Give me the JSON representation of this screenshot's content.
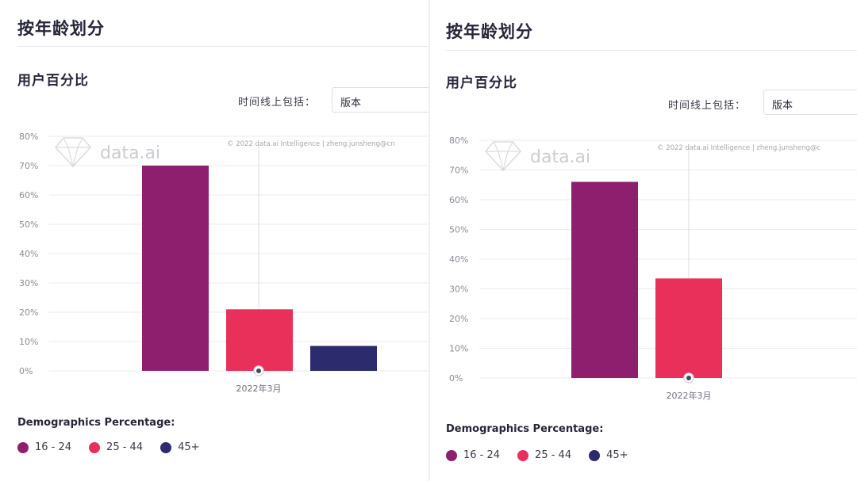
{
  "colors": {
    "age_16_24": "#8e1f6e",
    "age_25_44": "#e8305a",
    "age_45_plus": "#2b2b6e",
    "grid": "#e9ebef",
    "axis_text": "#8a8d96"
  },
  "panels": [
    {
      "title": "按年龄划分",
      "subtitle": "用户百分比",
      "filter_label": "时间线上包括：",
      "filter_value": "版本",
      "watermark": "data.ai",
      "copyright": "© 2022 data.ai Intelligence | zheng.junsheng@cn",
      "legend_title": "Demographics Percentage:",
      "legend": [
        "16 - 24",
        "25 - 44",
        "45+"
      ]
    },
    {
      "title": "按年龄划分",
      "subtitle": "用户百分比",
      "filter_label": "时间线上包括：",
      "filter_value": "版本",
      "watermark": "data.ai",
      "copyright": "© 2022 data.ai Intelligence | zheng.junsheng@c",
      "legend_title": "Demographics Percentage:",
      "legend": [
        "16 - 24",
        "25 - 44",
        "45+"
      ]
    }
  ],
  "chart_data": [
    {
      "type": "bar",
      "categories": [
        "2022年3月"
      ],
      "series": [
        {
          "name": "16 - 24",
          "values": [
            70
          ],
          "color": "#8e1f6e"
        },
        {
          "name": "25 - 44",
          "values": [
            21
          ],
          "color": "#e8305a"
        },
        {
          "name": "45+",
          "values": [
            8.5
          ],
          "color": "#2b2b6e"
        }
      ],
      "yticks": [
        "0%",
        "10%",
        "20%",
        "30%",
        "40%",
        "50%",
        "60%",
        "70%",
        "80%"
      ],
      "ylim": [
        0,
        80
      ],
      "grid": true,
      "legend_position": "bottom-left"
    },
    {
      "type": "bar",
      "categories": [
        "2022年3月"
      ],
      "series": [
        {
          "name": "16 - 24",
          "values": [
            66
          ],
          "color": "#8e1f6e"
        },
        {
          "name": "25 - 44",
          "values": [
            33.5
          ],
          "color": "#e8305a"
        }
      ],
      "yticks": [
        "0%",
        "10%",
        "20%",
        "30%",
        "40%",
        "50%",
        "60%",
        "70%",
        "80%"
      ],
      "ylim": [
        0,
        80
      ],
      "grid": true,
      "legend_position": "bottom-left"
    }
  ]
}
